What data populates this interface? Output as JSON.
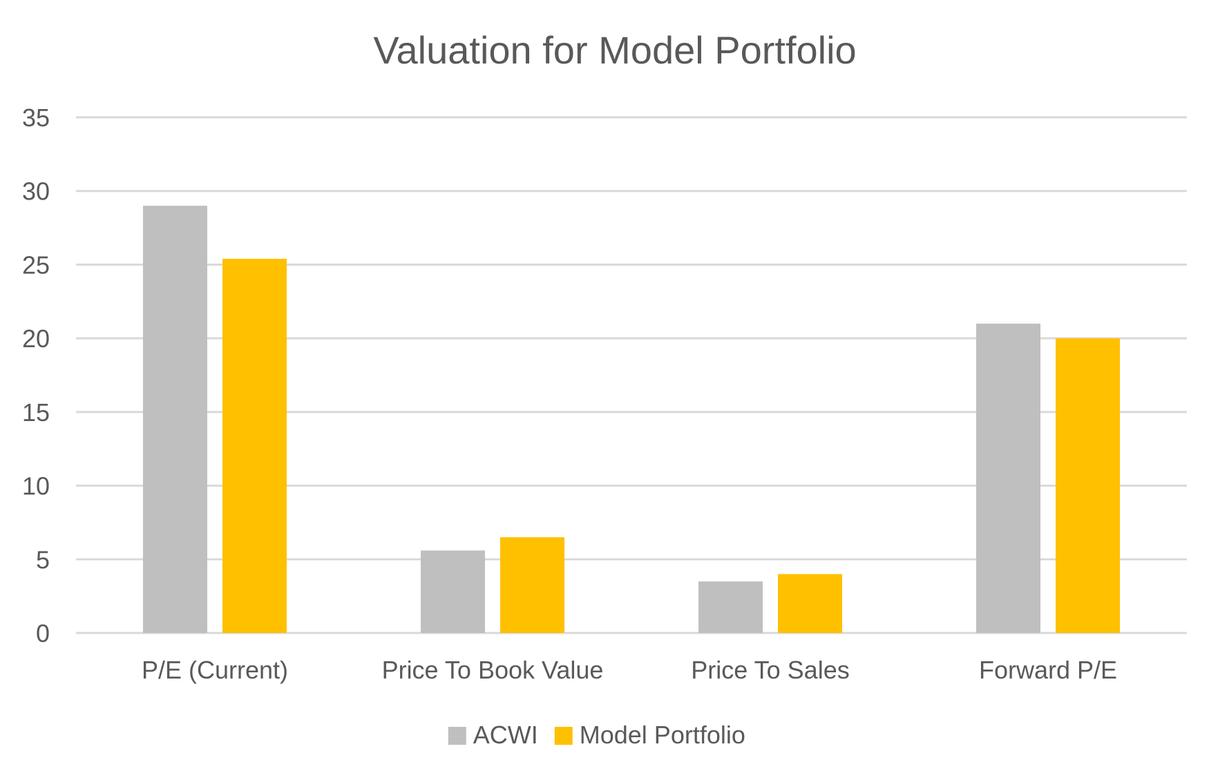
{
  "chart_data": {
    "type": "bar",
    "title": "Valuation for Model Portfolio",
    "xlabel": "",
    "ylabel": "",
    "categories": [
      "P/E (Current)",
      "Price To Book Value",
      "Price To Sales",
      "Forward P/E"
    ],
    "series": [
      {
        "name": "ACWI",
        "values": [
          29.0,
          5.6,
          3.5,
          21.0
        ],
        "color": "#bfbfbf"
      },
      {
        "name": "Model Portfolio",
        "values": [
          25.4,
          6.5,
          4.0,
          20.0
        ],
        "color": "#ffc000"
      }
    ],
    "ylim": [
      0,
      35
    ],
    "yticks": [
      "0",
      "5",
      "10",
      "15",
      "20",
      "25",
      "30",
      "35"
    ],
    "grid": true,
    "legend_position": "bottom",
    "colors": {
      "gridline": "#d9d9d9",
      "text": "#595959"
    }
  }
}
